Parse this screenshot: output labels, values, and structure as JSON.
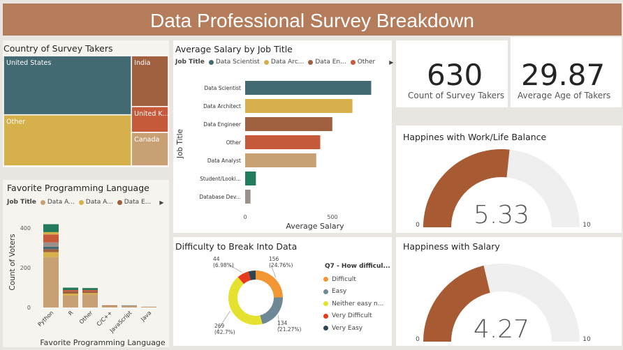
{
  "header": {
    "title": "Data Professional Survey Breakdown"
  },
  "kpis": {
    "survey_takers": {
      "value": "630",
      "label": "Count of Survey Takers"
    },
    "avg_age": {
      "value": "29.87",
      "label": "Average Age of Takers"
    }
  },
  "treemap": {
    "title": "Country of Survey Takers",
    "labels": [
      "United States",
      "Other",
      "India",
      "United K...",
      "Canada"
    ]
  },
  "salary_legend": {
    "field": "Job Title",
    "items": [
      "Data Scientist",
      "Data Arc...",
      "Data En...",
      "Other"
    ]
  },
  "lang_legend": {
    "field": "Job Title",
    "items": [
      "Data A...",
      "Data A...",
      "Data E..."
    ]
  },
  "donut_legend": {
    "title": "Q7 - How difficul...",
    "items": [
      "Difficult",
      "Easy",
      "Neither easy n...",
      "Very Difficult",
      "Very Easy"
    ]
  },
  "colors": {
    "teal": "#436a73",
    "gold": "#d6b04b",
    "brown": "#a0603f",
    "orange_red": "#c85a3c",
    "tan": "#c8a074",
    "green": "#237a5c",
    "gray": "#9a928a",
    "donut_difficult": "#f29533",
    "donut_easy": "#6f8896",
    "donut_neither": "#e5e22f",
    "donut_very_difficult": "#e73a1e",
    "donut_very_easy": "#2f4450",
    "gauge_fill": "#a85b33",
    "gauge_bg": "#efefef"
  },
  "chart_data": [
    {
      "type": "treemap",
      "title": "Country of Survey Takers",
      "categories": [
        "United States",
        "Other",
        "India",
        "United K...",
        "Canada"
      ],
      "values": [
        262,
        227,
        65,
        33,
        43
      ]
    },
    {
      "type": "bar",
      "orientation": "horizontal",
      "title": "Average Salary by Job Title",
      "xlabel": "Average Salary",
      "ylabel": "Job Title",
      "categories": [
        "Data Scientist",
        "Data Architect",
        "Data Engineer",
        "Other",
        "Data Analyst",
        "Student/Looki...",
        "Database Dev..."
      ],
      "values": [
        94,
        80,
        65,
        56,
        53,
        8,
        4
      ],
      "xlim": [
        0,
        100
      ],
      "xticks": [
        "0",
        "500"
      ],
      "legend": "top"
    },
    {
      "type": "bar",
      "stacked": true,
      "title": "Favorite Programming Language",
      "xlabel": "Favorite Programming Language",
      "ylabel": "Count of Voters",
      "categories": [
        "Python",
        "R",
        "Other",
        "C/C++",
        "JavaScript",
        "Java"
      ],
      "ylim": [
        0,
        450
      ],
      "yticks": [
        0,
        200,
        400
      ],
      "stacks": [
        [
          {
            "v": 254,
            "c": "#c8a074"
          },
          {
            "v": 25,
            "c": "#d6b04b"
          },
          {
            "v": 15,
            "c": "#a0603f"
          },
          {
            "v": 12,
            "c": "#436a73"
          },
          {
            "v": 22,
            "c": "#9a928a"
          },
          {
            "v": 40,
            "c": "#c85a3c"
          },
          {
            "v": 12,
            "c": "#d6b04b"
          },
          {
            "v": 40,
            "c": "#237a5c"
          }
        ],
        [
          {
            "v": 60,
            "c": "#c8a074"
          },
          {
            "v": 10,
            "c": "#d6b04b"
          },
          {
            "v": 12,
            "c": "#a0603f"
          },
          {
            "v": 6,
            "c": "#c85a3c"
          },
          {
            "v": 12,
            "c": "#237a5c"
          }
        ],
        [
          {
            "v": 65,
            "c": "#c8a074"
          },
          {
            "v": 8,
            "c": "#d6b04b"
          },
          {
            "v": 10,
            "c": "#a0603f"
          },
          {
            "v": 5,
            "c": "#c85a3c"
          },
          {
            "v": 10,
            "c": "#237a5c"
          }
        ],
        [
          {
            "v": 8,
            "c": "#c8a074"
          },
          {
            "v": 3,
            "c": "#a0603f"
          }
        ],
        [
          {
            "v": 7,
            "c": "#c8a074"
          },
          {
            "v": 4,
            "c": "#9a928a"
          }
        ],
        [
          {
            "v": 4,
            "c": "#c8a074"
          }
        ]
      ],
      "legend": "top"
    },
    {
      "type": "pie",
      "donut": true,
      "title": "Difficulty to Break Into Data",
      "categories": [
        "Difficult",
        "Easy",
        "Neither easy n...",
        "Very Difficult",
        "Very Easy"
      ],
      "values": [
        156,
        134,
        269,
        44,
        27
      ],
      "data_labels": {
        "Difficult": [
          "156",
          "(24.76%)"
        ],
        "Easy": [
          "134",
          "(21.27%)"
        ],
        "Neither easy n...": [
          "269",
          "(42.7%)"
        ],
        "Very Difficult": [
          "44",
          "(6.98%)"
        ]
      },
      "legend": "right"
    },
    {
      "type": "gauge",
      "title": "Happines with Work/Life Balance",
      "value": 5.33,
      "value_label": "5.33",
      "min": 0,
      "max": 10,
      "min_label": "0",
      "max_label": "10"
    },
    {
      "type": "gauge",
      "title": "Happiness with Salary",
      "value": 4.27,
      "value_label": "4.27",
      "min": 0,
      "max": 10,
      "min_label": "0",
      "max_label": "10"
    }
  ]
}
